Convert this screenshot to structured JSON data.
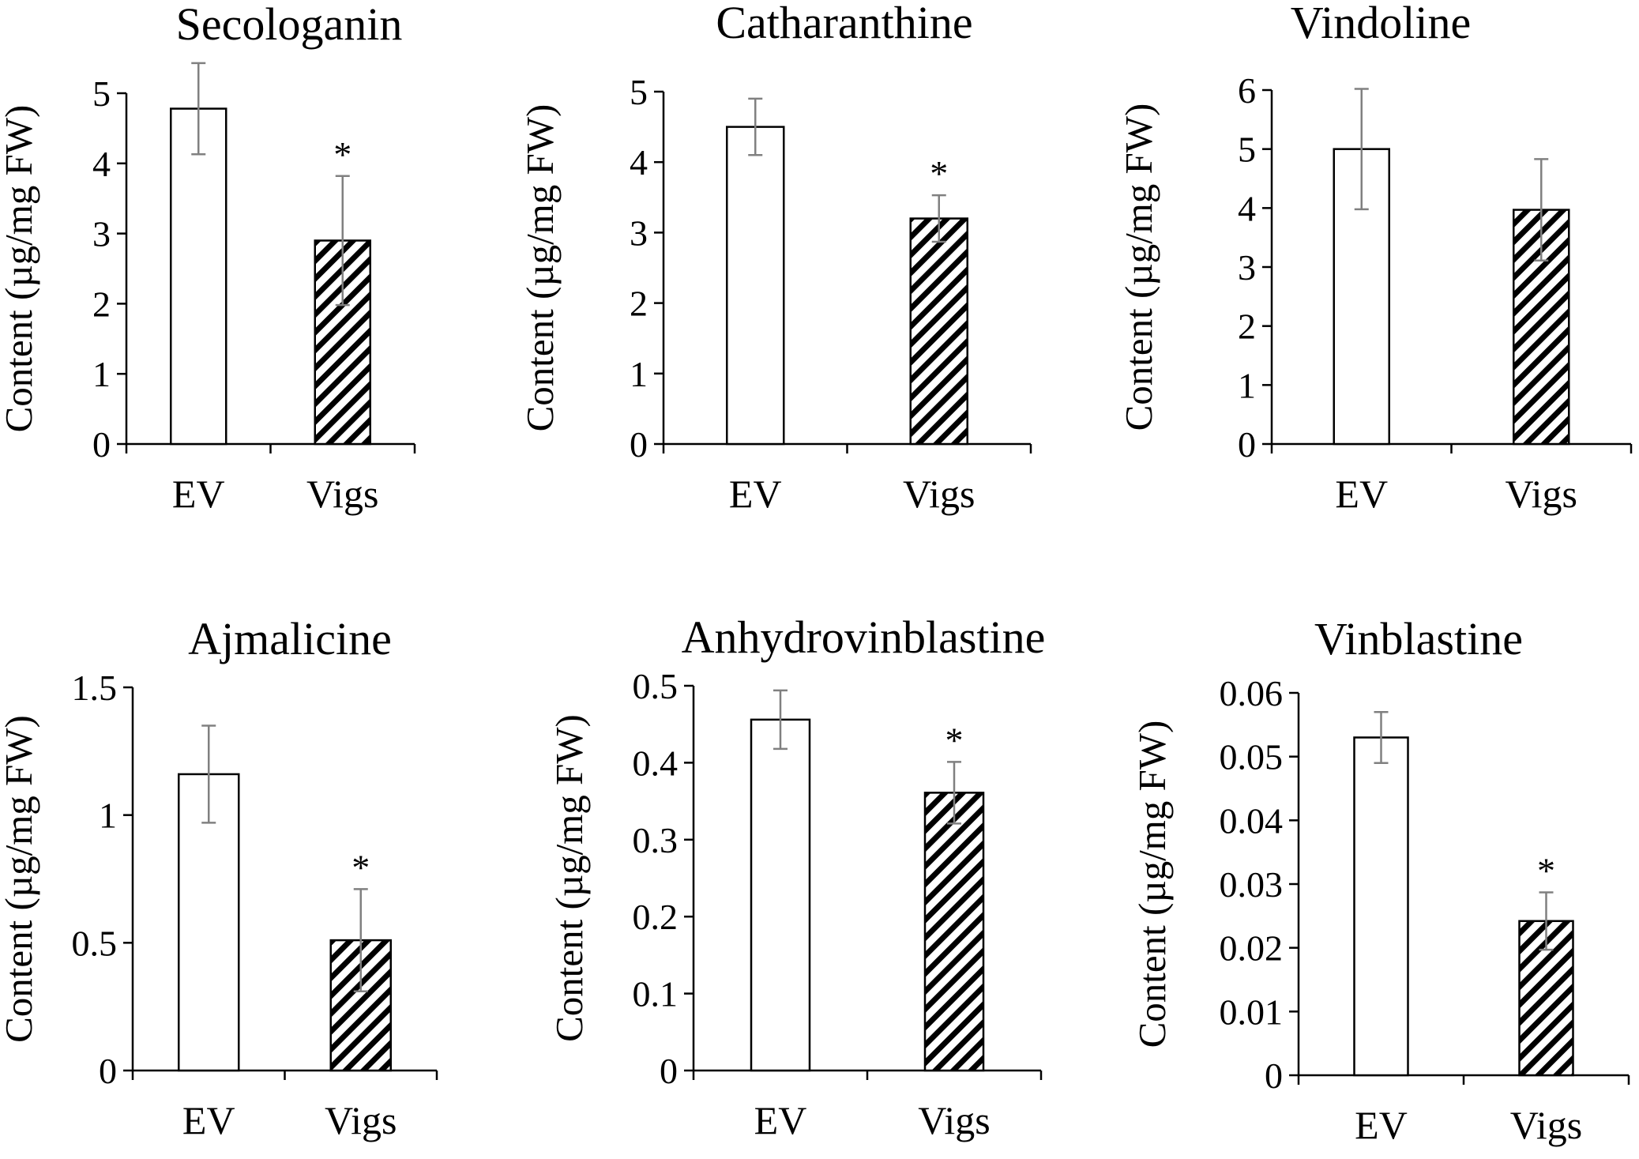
{
  "colors": {
    "axis": "#000000",
    "error_bar": "#808080",
    "bar_fill_ev": "#ffffff",
    "bar_stroke": "#000000",
    "hatch": "#000000"
  },
  "chart_data": [
    {
      "type": "bar",
      "title": "Secologanin",
      "ylabel": "Content (µg/mg FW)",
      "xlabel": "",
      "categories": [
        "EV",
        "Vigs"
      ],
      "values": [
        4.78,
        2.9
      ],
      "errors": [
        0.65,
        0.92
      ],
      "significance": [
        "",
        "*"
      ],
      "ylim": [
        0,
        5
      ],
      "yticks": [
        0,
        1,
        2,
        3,
        4,
        5
      ],
      "ytick_labels": [
        "0",
        "1",
        "2",
        "3",
        "4",
        "5"
      ]
    },
    {
      "type": "bar",
      "title": "Catharanthine",
      "ylabel": "Content (µg/mg FW)",
      "xlabel": "",
      "categories": [
        "EV",
        "Vigs"
      ],
      "values": [
        4.5,
        3.2
      ],
      "errors": [
        0.4,
        0.33
      ],
      "significance": [
        "",
        "*"
      ],
      "ylim": [
        0,
        5
      ],
      "yticks": [
        0,
        1,
        2,
        3,
        4,
        5
      ],
      "ytick_labels": [
        "0",
        "1",
        "2",
        "3",
        "4",
        "5"
      ]
    },
    {
      "type": "bar",
      "title": "Vindoline",
      "ylabel": "Content (µg/mg FW)",
      "xlabel": "",
      "categories": [
        "EV",
        "Vigs"
      ],
      "values": [
        5.0,
        3.97
      ],
      "errors": [
        1.02,
        0.86
      ],
      "significance": [
        "",
        ""
      ],
      "ylim": [
        0,
        6
      ],
      "yticks": [
        0,
        1,
        2,
        3,
        4,
        5,
        6
      ],
      "ytick_labels": [
        "0",
        "1",
        "2",
        "3",
        "4",
        "5",
        "6"
      ]
    },
    {
      "type": "bar",
      "title": "Ajmalicine",
      "ylabel": "Content (µg/mg FW)",
      "xlabel": "",
      "categories": [
        "EV",
        "Vigs"
      ],
      "values": [
        1.16,
        0.51
      ],
      "errors": [
        0.19,
        0.2
      ],
      "significance": [
        "",
        "*"
      ],
      "ylim": [
        0,
        1.5
      ],
      "yticks": [
        0,
        0.5,
        1,
        1.5
      ],
      "ytick_labels": [
        "0",
        "0.5",
        "1",
        "1.5"
      ]
    },
    {
      "type": "bar",
      "title": "Anhydrovinblastine",
      "ylabel": "Content (µg/mg FW)",
      "xlabel": "",
      "categories": [
        "EV",
        "Vigs"
      ],
      "values": [
        0.456,
        0.361
      ],
      "errors": [
        0.038,
        0.04
      ],
      "significance": [
        "",
        "*"
      ],
      "ylim": [
        0,
        0.5
      ],
      "yticks": [
        0,
        0.1,
        0.2,
        0.3,
        0.4,
        0.5
      ],
      "ytick_labels": [
        "0",
        "0.1",
        "0.2",
        "0.3",
        "0.4",
        "0.5"
      ]
    },
    {
      "type": "bar",
      "title": "Vinblastine",
      "ylabel": "Content (µg/mg FW)",
      "xlabel": "",
      "categories": [
        "EV",
        "Vigs"
      ],
      "values": [
        0.053,
        0.0242
      ],
      "errors": [
        0.004,
        0.0045
      ],
      "significance": [
        "",
        "*"
      ],
      "ylim": [
        0,
        0.06
      ],
      "yticks": [
        0,
        0.01,
        0.02,
        0.03,
        0.04,
        0.05,
        0.06
      ],
      "ytick_labels": [
        "0",
        "0.01",
        "0.02",
        "0.03",
        "0.04",
        "0.05",
        "0.06"
      ]
    }
  ]
}
